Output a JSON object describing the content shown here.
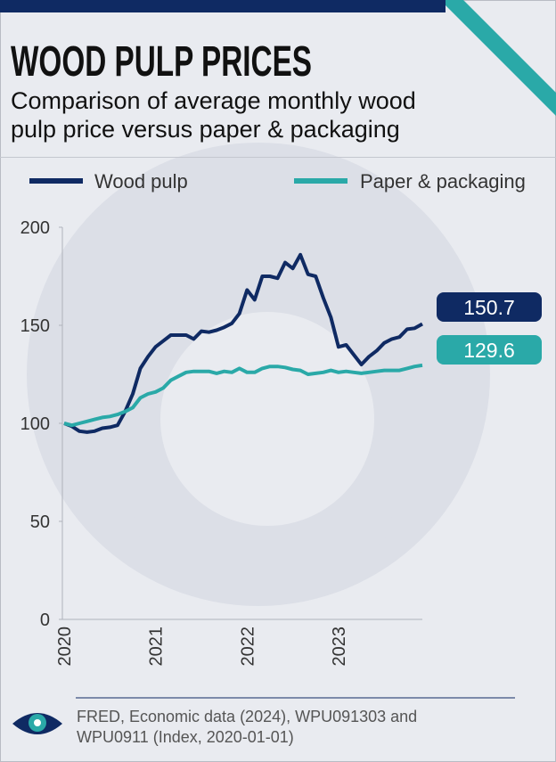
{
  "chart_data": {
    "type": "line",
    "title": "WOOD PULP PRICES",
    "subtitle": [
      "Comparison of average monthly wood",
      "pulp price versus paper & packaging"
    ],
    "categories": [
      "2020",
      null,
      null,
      null,
      null,
      null,
      null,
      null,
      null,
      null,
      null,
      null,
      "2021",
      null,
      null,
      null,
      null,
      null,
      null,
      null,
      null,
      null,
      null,
      null,
      "2022",
      null,
      null,
      null,
      null,
      null,
      null,
      null,
      null,
      null,
      null,
      null,
      "2023",
      null,
      null,
      null,
      null,
      null,
      null,
      null,
      null,
      null,
      null,
      null
    ],
    "series": [
      {
        "name": "Wood pulp",
        "color": "#0f2a63",
        "values": [
          100,
          98.5,
          96,
          95.5,
          96,
          97.5,
          98,
          99,
          106,
          115,
          128,
          134,
          139,
          142,
          145,
          145,
          145,
          143,
          147,
          146.5,
          147.5,
          149,
          151,
          156,
          168,
          163,
          175,
          175,
          174,
          182,
          179,
          186,
          176,
          175,
          164,
          154,
          139,
          140,
          135,
          130,
          134,
          137,
          141,
          143,
          144,
          148,
          148.5,
          150.7
        ]
      },
      {
        "name": "Paper & packaging",
        "color": "#2aa9a8",
        "values": [
          100,
          99,
          100,
          101,
          102,
          103,
          103.5,
          104.5,
          106,
          108,
          113,
          115,
          116,
          118,
          122,
          124,
          126,
          126.5,
          126.5,
          126.5,
          125.5,
          126.5,
          126,
          128,
          126,
          126,
          128,
          129,
          129,
          128.5,
          127.5,
          127,
          125,
          125.5,
          126,
          127,
          126,
          126.5,
          126,
          125.5,
          126,
          126.5,
          127,
          127,
          127,
          128,
          129,
          129.6
        ]
      }
    ],
    "ylim": [
      0,
      200
    ],
    "yticks": [
      0,
      50,
      100,
      150,
      200
    ],
    "grid": false,
    "legend": "top",
    "source": [
      "FRED, Economic data (2024), WPU091303 and",
      "WPU0911 (Index, 2020-01-01)"
    ]
  }
}
